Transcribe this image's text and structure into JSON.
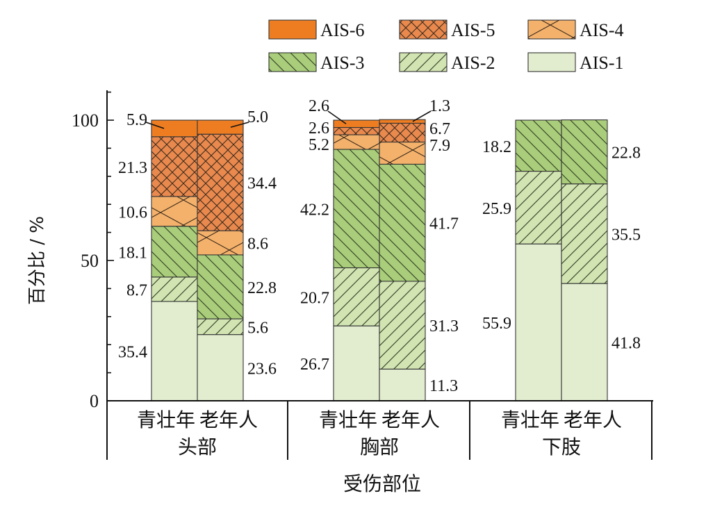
{
  "chart_data": {
    "type": "bar",
    "stacked": true,
    "groups": [
      "头部",
      "胸部",
      "下肢"
    ],
    "categories": [
      "青壮年",
      "老年人"
    ],
    "xlabel": "受伤部位",
    "ylabel": "百分比 / %",
    "ylim": [
      0,
      110
    ],
    "yticks": [
      0,
      50,
      100
    ],
    "legend_position": "top",
    "series": [
      {
        "name": "AIS-1",
        "color": "#e2edcf",
        "pattern": "none",
        "values": {
          "头部": [
            35.4,
            23.6
          ],
          "胸部": [
            26.7,
            11.3
          ],
          "下肢": [
            55.9,
            41.8
          ]
        }
      },
      {
        "name": "AIS-2",
        "color": "#d1e4b2",
        "pattern": "forward-hatch",
        "values": {
          "头部": [
            8.7,
            5.6
          ],
          "胸部": [
            20.7,
            31.3
          ],
          "下肢": [
            25.9,
            35.5
          ]
        }
      },
      {
        "name": "AIS-3",
        "color": "#a9cd7a",
        "pattern": "backward-hatch",
        "values": {
          "头部": [
            18.1,
            22.8
          ],
          "胸部": [
            42.2,
            41.7
          ],
          "下肢": [
            18.2,
            22.8
          ]
        }
      },
      {
        "name": "AIS-4",
        "color": "#f4b16b",
        "pattern": "x-in-box",
        "values": {
          "头部": [
            10.6,
            8.6
          ],
          "胸部": [
            5.2,
            7.9
          ],
          "下肢": [
            0,
            0
          ]
        }
      },
      {
        "name": "AIS-5",
        "color": "#e9894e",
        "pattern": "crosshatch",
        "values": {
          "头部": [
            21.3,
            34.4
          ],
          "胸部": [
            2.6,
            6.7
          ],
          "下肢": [
            0,
            0
          ]
        }
      },
      {
        "name": "AIS-6",
        "color": "#ee7d22",
        "pattern": "none",
        "values": {
          "头部": [
            5.9,
            5.0
          ],
          "胸部": [
            2.6,
            1.3
          ],
          "下肢": [
            0,
            0
          ]
        }
      }
    ],
    "data_labels": [
      {
        "group": "头部",
        "bar": 0,
        "side": "left",
        "series": [
          "AIS-6",
          "AIS-5",
          "AIS-4",
          "AIS-3",
          "AIS-2",
          "AIS-1"
        ],
        "text": [
          "5.9",
          "21.3",
          "10.6",
          "18.1",
          "8.7",
          "35.4"
        ]
      },
      {
        "group": "头部",
        "bar": 1,
        "side": "right",
        "series": [
          "AIS-6",
          "AIS-5",
          "AIS-4",
          "AIS-3",
          "AIS-2",
          "AIS-1"
        ],
        "text": [
          "5.0",
          "34.4",
          "8.6",
          "22.8",
          "5.6",
          "23.6"
        ]
      },
      {
        "group": "胸部",
        "bar": 0,
        "side": "left",
        "series": [
          "AIS-6",
          "AIS-5",
          "AIS-4",
          "AIS-3",
          "AIS-2",
          "AIS-1"
        ],
        "text": [
          "2.6",
          "2.6",
          "5.2",
          "42.2",
          "20.7",
          "26.7"
        ]
      },
      {
        "group": "胸部",
        "bar": 1,
        "side": "right",
        "series": [
          "AIS-6",
          "AIS-5",
          "AIS-4",
          "AIS-3",
          "AIS-2",
          "AIS-1"
        ],
        "text": [
          "1.3",
          "6.7",
          "7.9",
          "41.7",
          "31.3",
          "11.3"
        ]
      },
      {
        "group": "下肢",
        "bar": 0,
        "side": "left",
        "series": [
          "AIS-3",
          "AIS-2",
          "AIS-1"
        ],
        "text": [
          "18.2",
          "25.9",
          "55.9"
        ]
      },
      {
        "group": "下肢",
        "bar": 1,
        "side": "right",
        "series": [
          "AIS-3",
          "AIS-2",
          "AIS-1"
        ],
        "text": [
          "22.8",
          "35.5",
          "41.8"
        ]
      }
    ]
  }
}
